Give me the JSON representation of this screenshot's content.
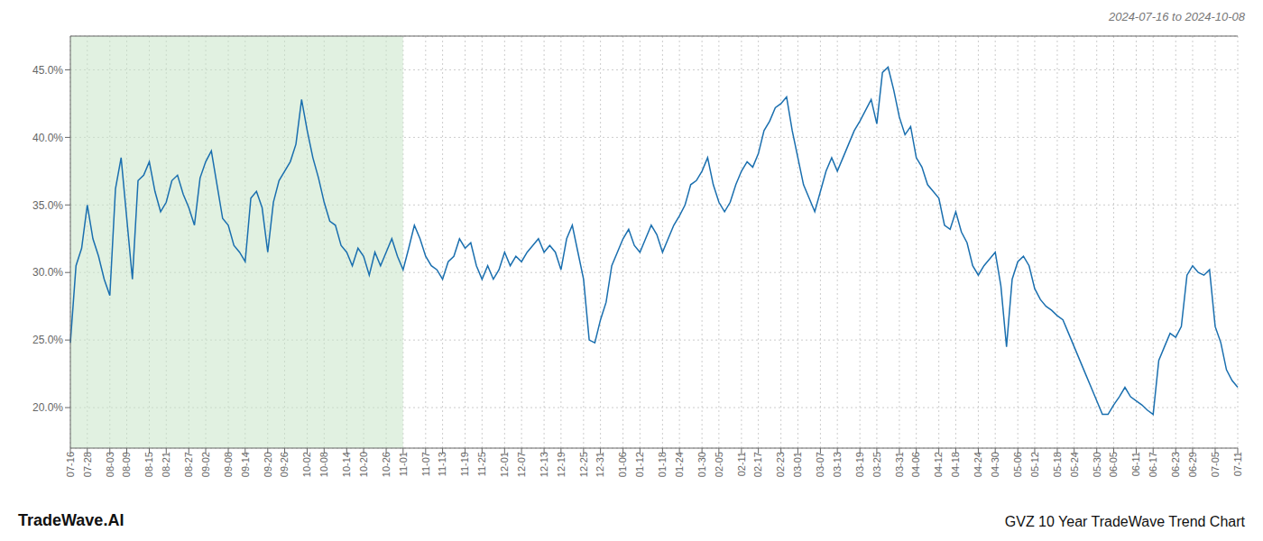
{
  "chart_data": {
    "type": "line",
    "title": "GVZ 10 Year TradeWave Trend Chart",
    "subtitle": "2024-07-16 to 2024-10-08",
    "annotations": [
      "TradeWave.AI"
    ],
    "color": "#1a6faf",
    "grid": true,
    "highlight": {
      "from": 0,
      "to": 59,
      "color": "#c8e6c9"
    },
    "ylim": [
      17.0,
      47.5
    ],
    "yticks": [
      {
        "value": 20.0,
        "label": "20.0%"
      },
      {
        "value": 25.0,
        "label": "25.0%"
      },
      {
        "value": 30.0,
        "label": "30.0%"
      },
      {
        "value": 35.0,
        "label": "35.0%"
      },
      {
        "value": 40.0,
        "label": "40.0%"
      },
      {
        "value": 45.0,
        "label": "45.0%"
      }
    ],
    "categories": [
      "07-16",
      null,
      null,
      "07-28",
      null,
      null,
      null,
      "08-03",
      null,
      null,
      "08-09",
      null,
      null,
      null,
      "08-15",
      null,
      null,
      "08-21",
      null,
      null,
      null,
      "08-27",
      null,
      null,
      "09-02",
      null,
      null,
      null,
      "09-08",
      null,
      null,
      "09-14",
      null,
      null,
      null,
      "09-20",
      null,
      null,
      "09-26",
      null,
      null,
      null,
      "10-02",
      null,
      null,
      "10-08",
      null,
      null,
      null,
      "10-14",
      null,
      null,
      "10-20",
      null,
      null,
      null,
      "10-26",
      null,
      null,
      "11-01",
      null,
      null,
      null,
      "11-07",
      null,
      null,
      "11-13",
      null,
      null,
      null,
      "11-19",
      null,
      null,
      "11-25",
      null,
      null,
      null,
      "12-01",
      null,
      null,
      "12-07",
      null,
      null,
      null,
      "12-13",
      null,
      null,
      "12-19",
      null,
      null,
      null,
      "12-25",
      null,
      null,
      "12-31",
      null,
      null,
      null,
      "01-06",
      null,
      null,
      "01-12",
      null,
      null,
      null,
      "01-18",
      null,
      null,
      "01-24",
      null,
      null,
      null,
      "01-30",
      null,
      null,
      "02-05",
      null,
      null,
      null,
      "02-11",
      null,
      null,
      "02-17",
      null,
      null,
      null,
      "02-23",
      null,
      null,
      "03-01",
      null,
      null,
      null,
      "03-07",
      null,
      null,
      "03-13",
      null,
      null,
      null,
      "03-19",
      null,
      null,
      "03-25",
      null,
      null,
      null,
      "03-31",
      null,
      null,
      "04-06",
      null,
      null,
      null,
      "04-12",
      null,
      null,
      "04-18",
      null,
      null,
      null,
      "04-24",
      null,
      null,
      "04-30",
      null,
      null,
      null,
      "05-06",
      null,
      null,
      "05-12",
      null,
      null,
      null,
      "05-18",
      null,
      null,
      "05-24",
      null,
      null,
      null,
      "05-30",
      null,
      null,
      "06-05",
      null,
      null,
      null,
      "06-11",
      null,
      null,
      "06-17",
      null,
      null,
      null,
      "06-23",
      null,
      null,
      "06-29",
      null,
      null,
      null,
      "07-05",
      null,
      null,
      null,
      "07-11"
    ],
    "values": [
      24.8,
      30.5,
      31.8,
      35.0,
      32.5,
      31.2,
      29.5,
      28.3,
      36.2,
      38.5,
      34.0,
      29.5,
      36.8,
      37.2,
      38.2,
      36.0,
      34.5,
      35.2,
      36.8,
      37.2,
      35.8,
      34.8,
      33.5,
      37.0,
      38.2,
      39.0,
      36.5,
      34.0,
      33.5,
      32.0,
      31.5,
      30.8,
      35.5,
      36.0,
      34.8,
      31.5,
      35.2,
      36.8,
      37.5,
      38.2,
      39.5,
      42.8,
      40.5,
      38.5,
      37.0,
      35.2,
      33.8,
      33.5,
      32.0,
      31.5,
      30.5,
      31.8,
      31.2,
      29.8,
      31.5,
      30.5,
      31.5,
      32.5,
      31.2,
      30.2,
      31.8,
      33.5,
      32.5,
      31.2,
      30.5,
      30.2,
      29.5,
      30.8,
      31.2,
      32.5,
      31.8,
      32.2,
      30.5,
      29.5,
      30.5,
      29.5,
      30.2,
      31.5,
      30.5,
      31.2,
      30.8,
      31.5,
      32.0,
      32.5,
      31.5,
      32.0,
      31.5,
      30.2,
      32.5,
      33.5,
      31.5,
      29.5,
      25.0,
      24.8,
      26.5,
      27.8,
      30.5,
      31.5,
      32.5,
      33.2,
      32.0,
      31.5,
      32.5,
      33.5,
      32.8,
      31.5,
      32.5,
      33.5,
      34.2,
      35.0,
      36.5,
      36.8,
      37.5,
      38.5,
      36.5,
      35.2,
      34.5,
      35.2,
      36.5,
      37.5,
      38.2,
      37.8,
      38.8,
      40.5,
      41.2,
      42.2,
      42.5,
      43.0,
      40.5,
      38.5,
      36.5,
      35.5,
      34.5,
      36.0,
      37.5,
      38.5,
      37.5,
      38.5,
      39.5,
      40.5,
      41.2,
      42.0,
      42.8,
      41.0,
      44.8,
      45.2,
      43.5,
      41.5,
      40.2,
      40.8,
      38.5,
      37.8,
      36.5,
      36.0,
      35.5,
      33.5,
      33.2,
      34.5,
      33.0,
      32.2,
      30.5,
      29.8,
      30.5,
      31.0,
      31.5,
      29.0,
      24.5,
      29.5,
      30.8,
      31.2,
      30.5,
      28.8,
      28.0,
      27.5,
      27.2,
      26.8,
      26.5,
      25.5,
      24.5,
      23.5,
      22.5,
      21.5,
      20.5,
      19.5,
      19.5,
      20.2,
      20.8,
      21.5,
      20.8,
      20.5,
      20.2,
      19.8,
      19.5,
      23.5,
      24.5,
      25.5,
      25.2,
      26.0,
      29.8,
      30.5,
      30.0,
      29.8,
      30.2,
      26.0,
      24.8,
      22.8,
      22.0,
      21.5
    ]
  }
}
